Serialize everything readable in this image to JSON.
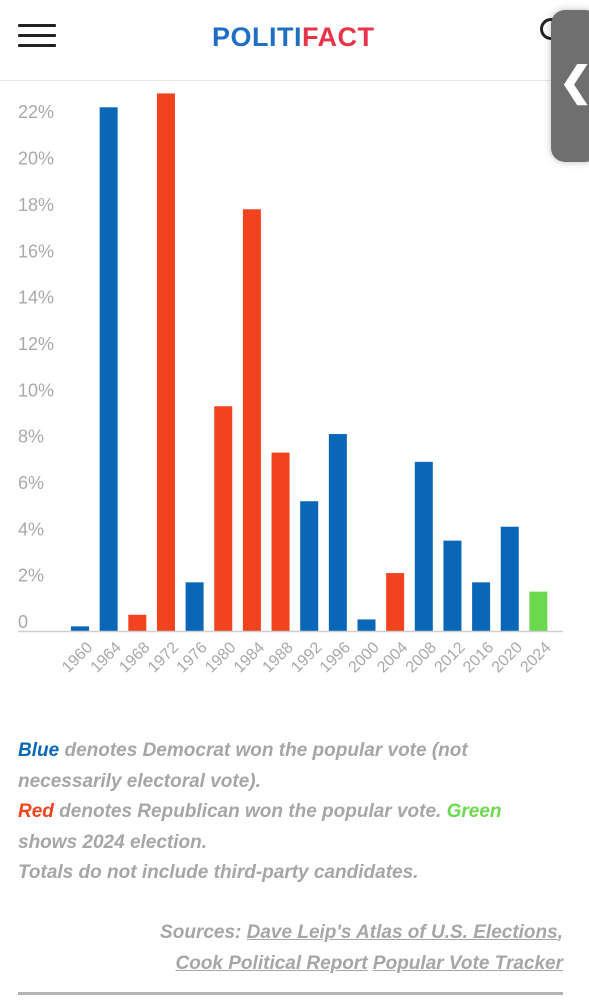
{
  "header": {
    "logo_part1": "POLITI",
    "logo_part2": "FACT"
  },
  "chart_data": {
    "type": "bar",
    "categories": [
      "1960",
      "1964",
      "1968",
      "1972",
      "1976",
      "1980",
      "1984",
      "1988",
      "1992",
      "1996",
      "2000",
      "2004",
      "2008",
      "2012",
      "2016",
      "2020",
      "2024"
    ],
    "values": [
      0.2,
      22.6,
      0.7,
      23.2,
      2.1,
      9.7,
      18.2,
      7.7,
      5.6,
      8.5,
      0.5,
      2.5,
      7.3,
      3.9,
      2.1,
      4.5,
      1.7
    ],
    "winner": [
      "D",
      "D",
      "R",
      "R",
      "D",
      "R",
      "R",
      "R",
      "D",
      "D",
      "D",
      "R",
      "D",
      "D",
      "D",
      "D",
      "2024"
    ],
    "colors": {
      "D": "#0a66b7",
      "R": "#f1441e",
      "2024": "#6cd84f"
    },
    "ytick_labels": [
      "0",
      "2%",
      "4%",
      "6%",
      "8%",
      "10%",
      "12%",
      "14%",
      "16%",
      "18%",
      "20%",
      "22%"
    ],
    "ylim": [
      0,
      23
    ],
    "grid": false,
    "title": "",
    "xlabel": "",
    "ylabel": ""
  },
  "legend": {
    "blue_word": "Blue",
    "blue_text": " denotes Democrat won the popular vote (not necessarily electoral vote).",
    "red_word": "Red",
    "red_text": " denotes Republican won the popular vote. ",
    "green_word": "Green",
    "green_text": " shows 2024 election.",
    "note": "Totals do not include third-party candidates."
  },
  "sources": {
    "label": "Sources: ",
    "link1": "Dave Leip's Atlas of U.S. Elections",
    "sep": ",",
    "link2": "Cook Political Report",
    "link3": "Popular Vote Tracker"
  }
}
